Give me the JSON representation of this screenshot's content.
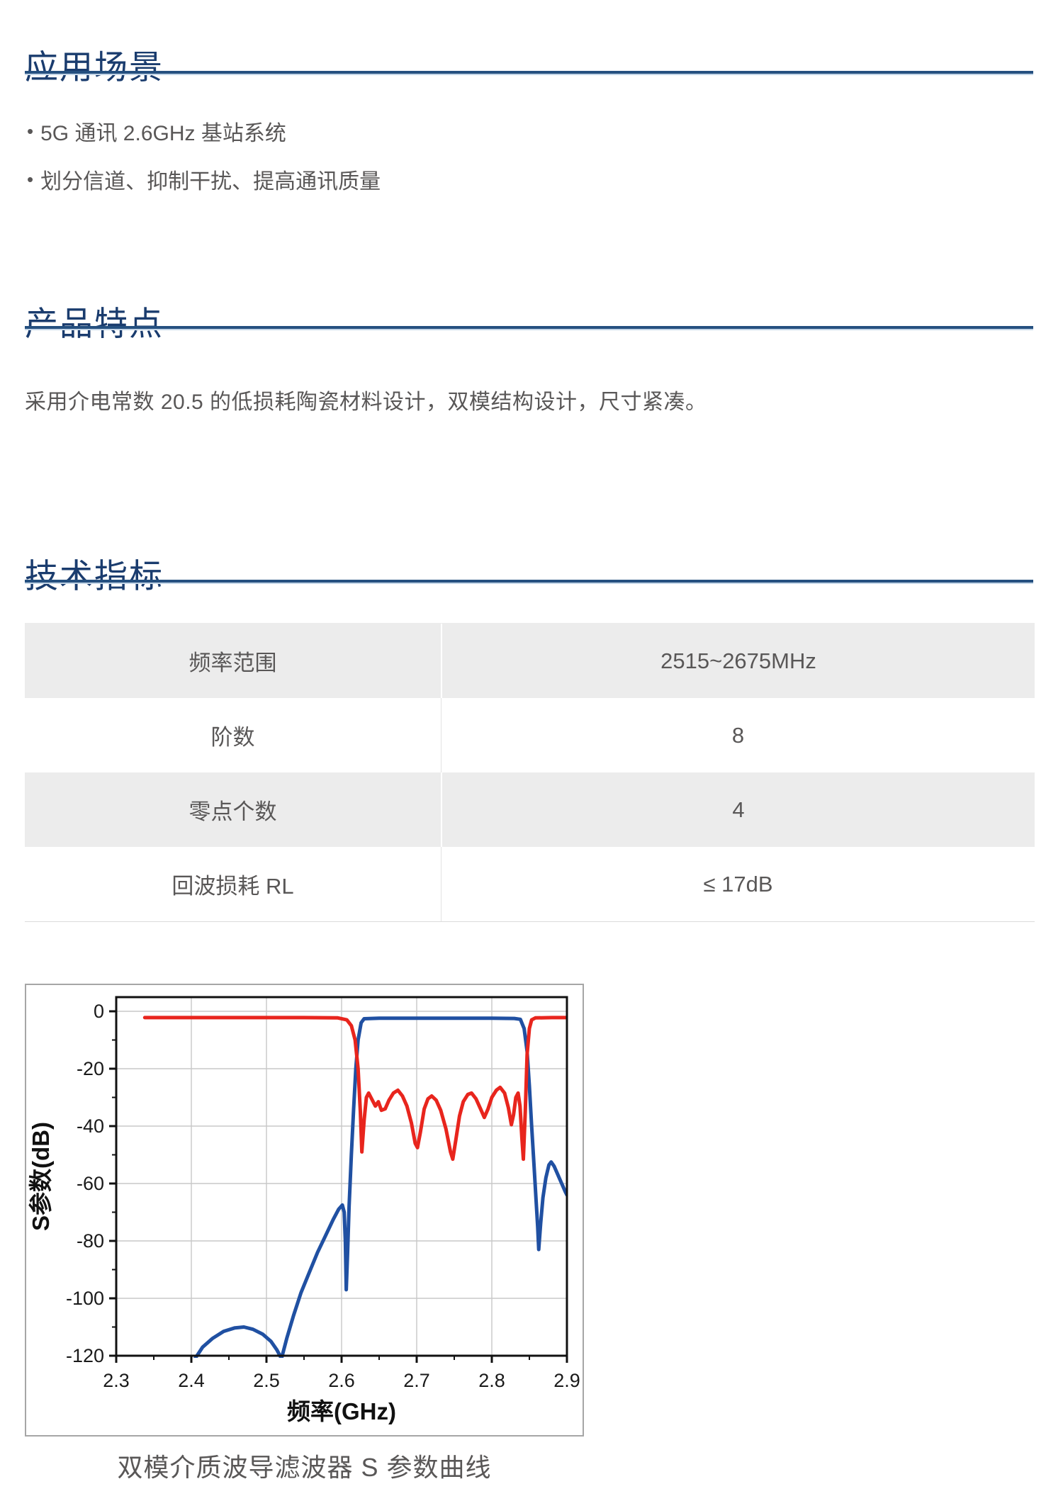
{
  "page": {
    "bullet_char": "•",
    "sections": {
      "application": {
        "title": "应用场景",
        "bullets": [
          "5G 通讯 2.6GHz 基站系统",
          "划分信道、抑制干扰、提高通讯质量"
        ]
      },
      "features": {
        "title": "产品特点",
        "body": "采用介电常数 20.5 的低损耗陶瓷材料设计，双模结构设计，尺寸紧凑。"
      },
      "specs": {
        "title": "技术指标",
        "table": {
          "rows": [
            {
              "label": "频率范围",
              "value": "2515~2675MHz"
            },
            {
              "label": "阶数",
              "value": "8"
            },
            {
              "label": "零点个数",
              "value": "4"
            },
            {
              "label": "回波损耗 RL",
              "value": "≤ 17dB"
            }
          ]
        }
      }
    },
    "figure": {
      "caption": "双模介质波导滤波器 S 参数曲线"
    }
  },
  "colors": {
    "heading": "#1a3c6e",
    "rule": "#255080",
    "rule_highlight": "#c3d5e7",
    "text": "#595757",
    "table_alt_row": "#ececec",
    "chart_frame": "#111111",
    "chart_grid": "#c8c8c8",
    "blue_curve": "#2050a2",
    "red_curve": "#e8251d",
    "box_border": "#a6a6a6"
  },
  "chart_data": {
    "type": "line",
    "title": "",
    "xlabel": "频率(GHz)",
    "ylabel": "S参数(dB)",
    "xlim": [
      2.3,
      2.9
    ],
    "ylim": [
      -120,
      5
    ],
    "grid": true,
    "legend": "none",
    "x_major_ticks": [
      2.3,
      2.4,
      2.5,
      2.6,
      2.7,
      2.8,
      2.9
    ],
    "x_minor_step": 0.05,
    "y_major_ticks": [
      0,
      -20,
      -40,
      -60,
      -80,
      -100,
      -120
    ],
    "y_minor_step": 10,
    "series": [
      {
        "name": "blue-transmission-curve",
        "color": "#2050a2",
        "points": [
          [
            2.405,
            -121
          ],
          [
            2.415,
            -117
          ],
          [
            2.428,
            -114
          ],
          [
            2.443,
            -111.5
          ],
          [
            2.458,
            -110.3
          ],
          [
            2.47,
            -110
          ],
          [
            2.482,
            -110.8
          ],
          [
            2.495,
            -112.5
          ],
          [
            2.506,
            -115
          ],
          [
            2.514,
            -118
          ],
          [
            2.52,
            -121
          ],
          [
            2.527,
            -114
          ],
          [
            2.536,
            -106
          ],
          [
            2.546,
            -98
          ],
          [
            2.557,
            -91
          ],
          [
            2.568,
            -84
          ],
          [
            2.579,
            -78
          ],
          [
            2.589,
            -72.5
          ],
          [
            2.596,
            -69
          ],
          [
            2.601,
            -67.5
          ],
          [
            2.6035,
            -70
          ],
          [
            2.605,
            -80
          ],
          [
            2.6062,
            -97
          ],
          [
            2.608,
            -84
          ],
          [
            2.61,
            -68
          ],
          [
            2.613,
            -50
          ],
          [
            2.616,
            -34
          ],
          [
            2.619,
            -20
          ],
          [
            2.622,
            -10
          ],
          [
            2.626,
            -4
          ],
          [
            2.63,
            -2.6
          ],
          [
            2.65,
            -2.4
          ],
          [
            2.7,
            -2.4
          ],
          [
            2.75,
            -2.4
          ],
          [
            2.8,
            -2.4
          ],
          [
            2.83,
            -2.5
          ],
          [
            2.838,
            -2.8
          ],
          [
            2.843,
            -6
          ],
          [
            2.847,
            -14
          ],
          [
            2.85,
            -26
          ],
          [
            2.853,
            -40
          ],
          [
            2.856,
            -53
          ],
          [
            2.859,
            -66
          ],
          [
            2.861,
            -75
          ],
          [
            2.8625,
            -83
          ],
          [
            2.865,
            -74
          ],
          [
            2.868,
            -65
          ],
          [
            2.872,
            -58
          ],
          [
            2.876,
            -53.5
          ],
          [
            2.879,
            -52.5
          ],
          [
            2.883,
            -54
          ],
          [
            2.888,
            -57
          ],
          [
            2.893,
            -60
          ],
          [
            2.898,
            -63
          ],
          [
            2.9,
            -64
          ]
        ]
      },
      {
        "name": "red-return-loss-curve",
        "color": "#e8251d",
        "points": [
          [
            2.338,
            -2.2
          ],
          [
            2.45,
            -2.2
          ],
          [
            2.55,
            -2.2
          ],
          [
            2.595,
            -2.3
          ],
          [
            2.607,
            -3
          ],
          [
            2.613,
            -5
          ],
          [
            2.618,
            -10
          ],
          [
            2.622,
            -20
          ],
          [
            2.625,
            -35
          ],
          [
            2.627,
            -49
          ],
          [
            2.63,
            -38
          ],
          [
            2.633,
            -30
          ],
          [
            2.636,
            -28.5
          ],
          [
            2.64,
            -30.5
          ],
          [
            2.645,
            -33
          ],
          [
            2.649,
            -31.5
          ],
          [
            2.653,
            -34.5
          ],
          [
            2.658,
            -34
          ],
          [
            2.663,
            -31
          ],
          [
            2.669,
            -28.5
          ],
          [
            2.675,
            -27.5
          ],
          [
            2.681,
            -29.5
          ],
          [
            2.687,
            -33
          ],
          [
            2.693,
            -39
          ],
          [
            2.698,
            -46
          ],
          [
            2.701,
            -47.5
          ],
          [
            2.705,
            -42
          ],
          [
            2.71,
            -34
          ],
          [
            2.715,
            -30.5
          ],
          [
            2.72,
            -29.5
          ],
          [
            2.726,
            -31
          ],
          [
            2.732,
            -34.5
          ],
          [
            2.739,
            -41
          ],
          [
            2.745,
            -49
          ],
          [
            2.748,
            -51.5
          ],
          [
            2.752,
            -45
          ],
          [
            2.757,
            -36.5
          ],
          [
            2.762,
            -31.5
          ],
          [
            2.768,
            -29
          ],
          [
            2.773,
            -28.5
          ],
          [
            2.779,
            -30.5
          ],
          [
            2.785,
            -34
          ],
          [
            2.79,
            -37
          ],
          [
            2.795,
            -34
          ],
          [
            2.8,
            -30
          ],
          [
            2.806,
            -27.5
          ],
          [
            2.811,
            -26.5
          ],
          [
            2.817,
            -28.5
          ],
          [
            2.822,
            -33.5
          ],
          [
            2.826,
            -39.5
          ],
          [
            2.829,
            -36
          ],
          [
            2.832,
            -30
          ],
          [
            2.835,
            -28.5
          ],
          [
            2.8375,
            -33
          ],
          [
            2.84,
            -44
          ],
          [
            2.842,
            -51.5
          ],
          [
            2.8445,
            -35
          ],
          [
            2.847,
            -15
          ],
          [
            2.85,
            -6
          ],
          [
            2.853,
            -3
          ],
          [
            2.858,
            -2.3
          ],
          [
            2.88,
            -2.2
          ],
          [
            2.9,
            -2.2
          ]
        ]
      }
    ]
  }
}
